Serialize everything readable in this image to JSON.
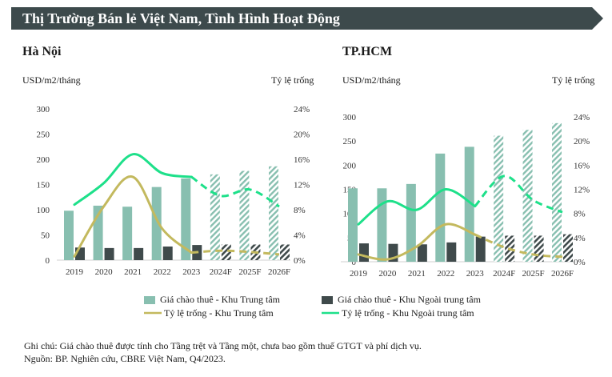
{
  "header": {
    "title": "Thị Trường Bán lẻ Việt Nam, Tình Hình Hoạt Động"
  },
  "legend": {
    "rent_cbd": "Giá chào thuê - Khu Trung tâm",
    "rent_non_cbd": "Giá chào thuê - Khu Ngoài trung tâm",
    "vac_cbd": "Tỷ lệ trống - Khu Trung tâm",
    "vac_non_cbd": "Tỷ lệ trống - Khu Ngoài trung tâm"
  },
  "colors": {
    "banner": "#3d4a4c",
    "rent_cbd": "#88bfb0",
    "rent_non_cbd": "#3f4a4b",
    "vac_cbd": "#c3b95e",
    "vac_non_cbd": "#1ee08a"
  },
  "notes": {
    "note": "Ghi chú: Giá chào thuê được tính cho Tầng trệt và Tầng một, chưa bao gồm thuế GTGT và phí dịch vụ.",
    "source": "Nguồn: BP. Nghiên cứu, CBRE Việt Nam, Q4/2023."
  },
  "chart_data": [
    {
      "type": "bar",
      "title": "Hà Nội",
      "ylabel": "USD/m2/tháng",
      "y2label": "Tỷ lệ trống",
      "categories": [
        "2019",
        "2020",
        "2021",
        "2022",
        "2023",
        "2024F",
        "2025F",
        "2026F"
      ],
      "forecast_from": "2024F",
      "ylim": [
        0,
        300
      ],
      "yticks": [
        "0",
        "50",
        "100",
        "150",
        "200",
        "250",
        "300"
      ],
      "y2lim": [
        0,
        24
      ],
      "y2ticks": [
        "0%",
        "4%",
        "8%",
        "12%",
        "16%",
        "20%",
        "24%"
      ],
      "series": [
        {
          "name": "Giá chào thuê - Khu Trung tâm",
          "kind": "bar",
          "values": [
            98,
            108,
            106,
            145,
            162,
            170,
            177,
            186
          ]
        },
        {
          "name": "Giá chào thuê - Khu Ngoài trung tâm",
          "kind": "bar",
          "values": [
            25,
            24,
            24,
            27,
            30,
            31,
            31,
            31
          ]
        },
        {
          "name": "Tỷ lệ trống - Khu Trung tâm",
          "kind": "line",
          "axis": "right",
          "values": [
            0.6,
            8.5,
            13.2,
            5.0,
            1.2,
            1.5,
            1.3,
            0.9
          ]
        },
        {
          "name": "Tỷ lệ trống - Khu Ngoài trung tâm",
          "kind": "line",
          "axis": "right",
          "values": [
            8.8,
            12.2,
            16.8,
            13.8,
            13.2,
            10.2,
            11.2,
            8.5
          ]
        }
      ]
    },
    {
      "type": "bar",
      "title": "TP.HCM",
      "ylabel": "USD/m2/tháng",
      "y2label": "Tỷ lệ trống",
      "categories": [
        "2019",
        "2020",
        "2021",
        "2022",
        "2023",
        "2024F",
        "2025F",
        "2026F"
      ],
      "forecast_from": "2024F",
      "ylim": [
        0,
        300
      ],
      "yticks": [
        "0",
        "50",
        "100",
        "150",
        "200",
        "250",
        "300"
      ],
      "y2lim": [
        0,
        24
      ],
      "y2ticks": [
        "0%",
        "4%",
        "8%",
        "12%",
        "16%",
        "20%",
        "24%"
      ],
      "series": [
        {
          "name": "Giá chào thuê - Khu Trung tâm",
          "kind": "bar",
          "values": [
            152,
            152,
            161,
            224,
            238,
            261,
            273,
            287
          ]
        },
        {
          "name": "Giá chào thuê - Khu Ngoài trung tâm",
          "kind": "bar",
          "values": [
            38,
            37,
            36,
            40,
            52,
            54,
            54,
            57
          ]
        },
        {
          "name": "Tỷ lệ trống - Khu Trung tâm",
          "kind": "line",
          "axis": "right",
          "values": [
            1.2,
            0.4,
            2.5,
            6.2,
            4.5,
            2.4,
            1.2,
            0.8
          ]
        },
        {
          "name": "Tỷ lệ trống - Khu Ngoài trung tâm",
          "kind": "line",
          "axis": "right",
          "values": [
            6.2,
            10.0,
            8.6,
            12.0,
            9.2,
            14.2,
            10.2,
            8.2
          ]
        }
      ]
    }
  ]
}
